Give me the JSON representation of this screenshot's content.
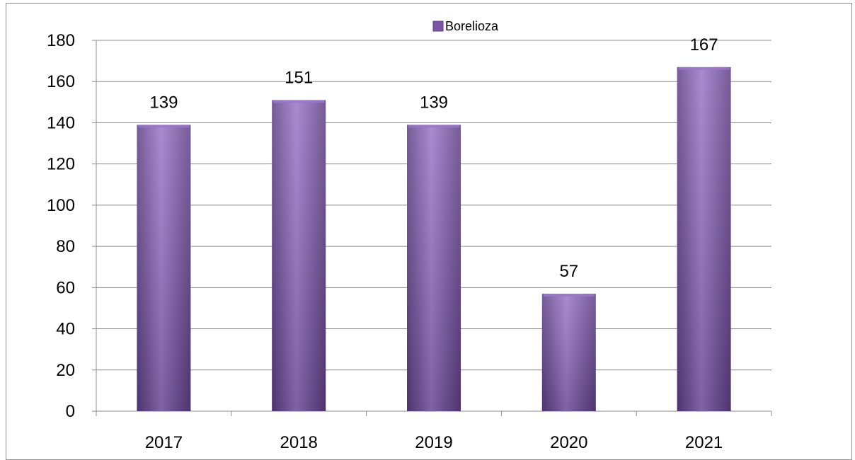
{
  "chart_data": {
    "type": "bar",
    "categories": [
      "2017",
      "2018",
      "2019",
      "2020",
      "2021"
    ],
    "series": [
      {
        "name": "Borelioza",
        "values": [
          139,
          151,
          139,
          57,
          167
        ]
      }
    ],
    "y_ticks": [
      "0",
      "20",
      "40",
      "60",
      "80",
      "100",
      "120",
      "140",
      "160",
      "180"
    ],
    "ylim": [
      0,
      180
    ],
    "grid": true,
    "legend": "top-center",
    "bar_color": "#7a55a8",
    "bar_color_light": "#9a77c8",
    "bar_color_dark": "#5e3f86",
    "grid_color": "#8c8c8c"
  }
}
